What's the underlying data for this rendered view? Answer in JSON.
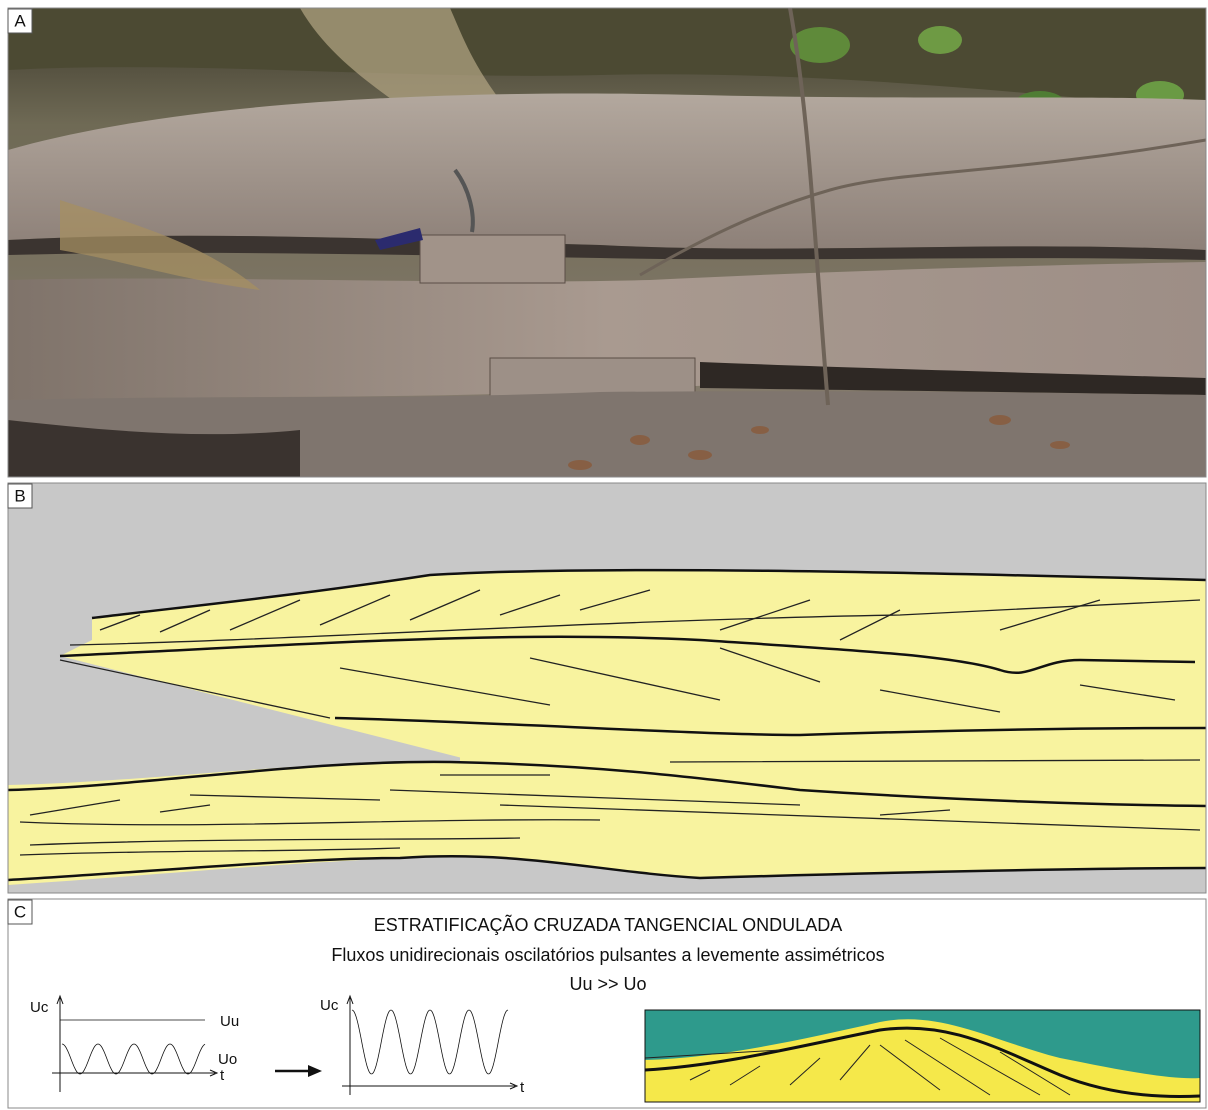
{
  "panels": {
    "a": {
      "label": "A"
    },
    "b": {
      "label": "B"
    },
    "c": {
      "label": "C",
      "title": "ESTRATIFICAÇÃO CRUZADA TANGENCIAL ONDULADA",
      "subtitle": "Fluxos unidirecionais oscilatórios pulsantes a levemente assimétricos",
      "relation": "Uu >> Uo",
      "graph_1": {
        "y_axis": "Uc",
        "upper_line": "Uu",
        "lower_line": "Uo",
        "x_axis": "t"
      },
      "graph_2": {
        "y_axis": "Uc",
        "x_axis": "t"
      }
    }
  }
}
